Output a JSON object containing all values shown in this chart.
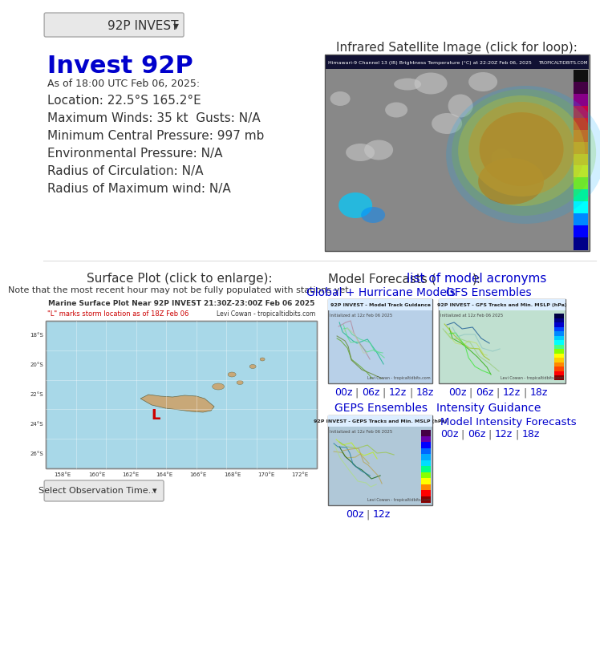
{
  "title_dropdown": "92P INVEST",
  "title_main": "Invest 92P",
  "subtitle": "As of 18:00 UTC Feb 06, 2025:",
  "info_lines": [
    "Location: 22.5°S 165.2°E",
    "Maximum Winds: 35 kt  Gusts: N/A",
    "Minimum Central Pressure: 997 mb",
    "Environmental Pressure: N/A",
    "Radius of Circulation: N/A",
    "Radius of Maximum wind: N/A"
  ],
  "sat_title": "Infrared Satellite Image (click for loop):",
  "sat_subtitle": "Himawari-9 Channel 13 (IR) Brightness Temperature (°C) at 22:20Z Feb 06, 2025",
  "sat_credit": "TROPICALTIDBITS.COM",
  "surface_title": "Surface Plot (click to enlarge):",
  "surface_note": "Note that the most recent hour may not be fully populated with stations yet.",
  "surface_map_title": "Marine Surface Plot Near 92P INVEST 21:30Z-23:00Z Feb 06 2025",
  "surface_map_subtitle": "\"L\" marks storm location as of 18Z Feb 06",
  "surface_map_credit": "Levi Cowan - tropicaltidbits.com",
  "surface_dropdown": "Select Observation Time...",
  "model_title": "Model Forecasts (",
  "model_link": "list of model acronyms",
  "model_title_end": "):",
  "model_global_title": "Global + Hurricane Models",
  "model_gfs_title": "GFS Ensembles",
  "model_gfs_img_title": "92P INVEST - GFS Tracks and Min. MSLP (hPa)",
  "model_gfs_img_subtitle": "Initialized at 12z Feb 06 2025",
  "model_gfs_credit": "Levi Cowan - tropicaltidbits.com",
  "model_links_gfs": [
    "00z",
    "06z",
    "12z",
    "18z"
  ],
  "model_links_global": [
    "00z",
    "06z",
    "12z",
    "18z"
  ],
  "model_geps_title": "GEPS Ensembles",
  "model_geps_img_title": "92P INVEST - GEPS Tracks and Min. MSLP (hPa)",
  "model_geps_img_subtitle": "Initialized at 12z Feb 06 2025",
  "model_geps_credit": "Levi Cowan - tropicaltidbits.com",
  "model_geps_links": [
    "00z",
    "12z"
  ],
  "model_intensity_title": "Intensity Guidance",
  "model_intensity_link": "Model Intensity Forecasts",
  "model_intensity_links": [
    "00z",
    "06z",
    "12z",
    "18z"
  ],
  "model_global_img_title": "92P INVEST - Model Track Guidance",
  "model_global_img_subtitle": "Initialized at 12z Feb 06 2025",
  "model_global_credit": "Levi Cowan - tropicaltidbits.com",
  "bg_color": "#ffffff",
  "dropdown_bg": "#e8e8e8",
  "dropdown_border": "#aaaaaa",
  "title_color": "#0000cc",
  "text_color": "#333333",
  "link_color": "#0000cc",
  "map_bg": "#a8d8e8",
  "map_land_color": "#c8a878",
  "map_border": "#888888",
  "surface_map_subtitle_color": "#cc0000",
  "sat_bg": "#cccccc"
}
